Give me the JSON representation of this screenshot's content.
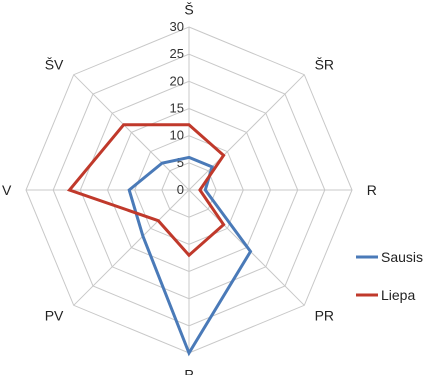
{
  "chart_data": {
    "type": "radar",
    "categories": [
      "Š",
      "ŠR",
      "R",
      "PR",
      "P",
      "PV",
      "V",
      "ŠV"
    ],
    "rlim": [
      0,
      30
    ],
    "ticks": [
      "0",
      "5",
      "10",
      "15",
      "20",
      "25",
      "30"
    ],
    "grid": true,
    "legend_position": "right",
    "series": [
      {
        "name": "Sausis",
        "color": "#4a7ab8",
        "values": [
          6,
          6,
          3,
          16,
          30,
          12,
          11,
          7
        ]
      },
      {
        "name": "Liepa",
        "color": "#c0392b",
        "values": [
          12,
          9,
          2,
          9,
          12,
          8,
          22,
          17
        ]
      }
    ]
  }
}
